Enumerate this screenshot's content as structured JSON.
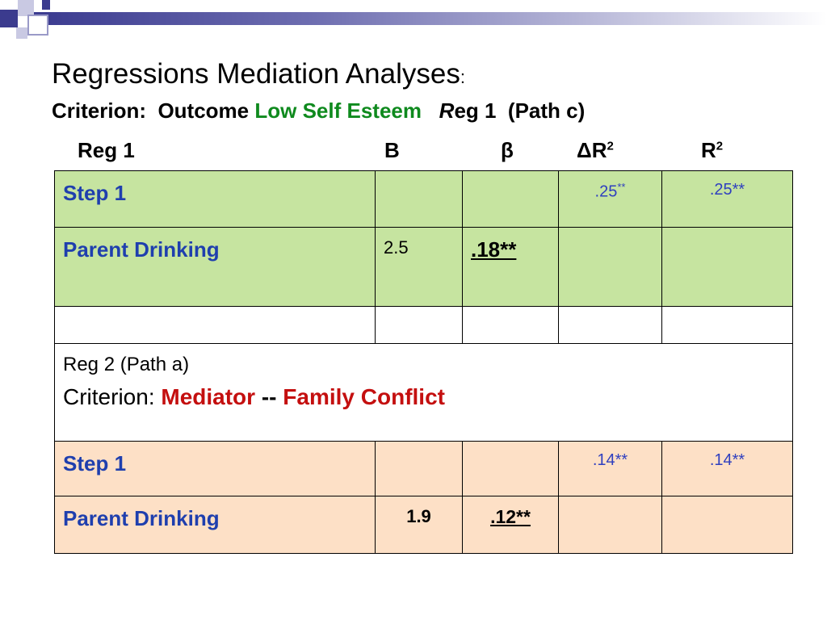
{
  "title": {
    "main": "Regressions Mediation Analyses",
    "colon": ":"
  },
  "criterion": {
    "prefix": "Criterion:  Outcome ",
    "highlight": "Low Self Esteem",
    "reg_r": "R",
    "reg_rest": "eg 1  (Path c)"
  },
  "columns": {
    "reg": "Reg 1",
    "b": "B",
    "beta": "β",
    "delta_r2": "ΔR",
    "r2": "R",
    "sup": "2"
  },
  "reg1": {
    "step_label": "Step 1",
    "step_delta_r2": ".25",
    "step_delta_r2_sup": "**",
    "step_r2": ".25**",
    "predictor": "Parent Drinking",
    "b": "2.5",
    "beta": ".18**"
  },
  "reg2": {
    "title": "Reg 2 (Path a)",
    "crit_label": "Criterion",
    "crit_colon": ": ",
    "mediator": "Mediator",
    "dash": " -- ",
    "mediator_name": "Family Conflict",
    "step_label": "Step 1",
    "step_delta_r2": ".14**",
    "step_r2": ".14**",
    "predictor": "Parent Drinking",
    "b": "1.9",
    "beta": ".12**"
  }
}
